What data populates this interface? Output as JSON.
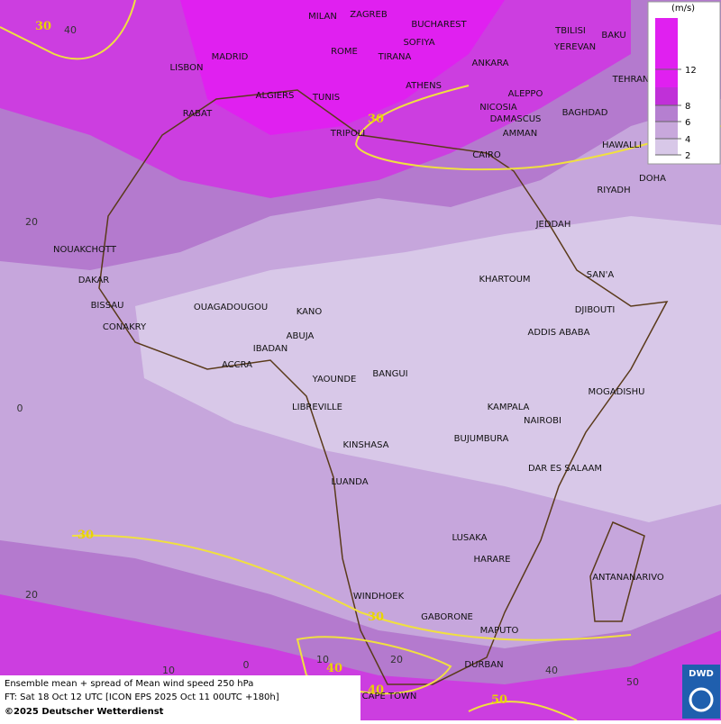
{
  "cities": [
    "MILAN",
    "ZAGREB",
    "BUCHAREST",
    "TBILISI",
    "BAKU",
    "MADRID",
    "ROME",
    "SOFIYA",
    "YEREVAN",
    "LISBON",
    "TIRANA",
    "ANKARA",
    "TEHRAN",
    "ALGIERS",
    "TUNIS",
    "ATHENS",
    "ALEPPO",
    "RABAT",
    "NICOSIA",
    "BAGHDAD",
    "DAMASCUS",
    "TRIPOLI",
    "AMMAN",
    "HAWALLI",
    "CAIRO",
    "DOHA",
    "RIYADH",
    "JEDDAH",
    "NOUAKCHOTT",
    "SAN'A",
    "DAKAR",
    "KHARTOUM",
    "BISSAU",
    "OUAGADOUGOU",
    "KANO",
    "DJIBOUTI",
    "CONAKRY",
    "ABUJA",
    "ADDIS ABABA",
    "IBADAN",
    "ACCRA",
    "BANGUI",
    "YAOUNDE",
    "MOGADISHU",
    "LIBREVILLE",
    "KAMPALA",
    "NAIROBI",
    "BUJUMBURA",
    "KINSHASA",
    "DAR ES SALAAM",
    "LUANDA",
    "LUSAKA",
    "HARARE",
    "ANTANANARIVO",
    "WINDHOEK",
    "GABORONE",
    "MAPUTO",
    "DURBAN",
    "CAPE TOWN"
  ],
  "contours": [
    30,
    30,
    30,
    30,
    40,
    40,
    50
  ],
  "latitude_labels": [
    40,
    20,
    0,
    20
  ],
  "longitude_labels": [
    10,
    0,
    10,
    20,
    40,
    50
  ],
  "legend": {
    "unit": "(m/s)",
    "ticks": [
      2,
      4,
      6,
      8,
      12
    ]
  },
  "footer": {
    "title": "Ensemble mean + spread of Mean wind speed 250 hPa",
    "forecast": "FT: Sat 18 Oct 12 UTC [ICON EPS 2025 Oct 11 00UTC +180h]",
    "copyright": "©2025 Deutscher Wetterdienst"
  },
  "logo": "DWD"
}
